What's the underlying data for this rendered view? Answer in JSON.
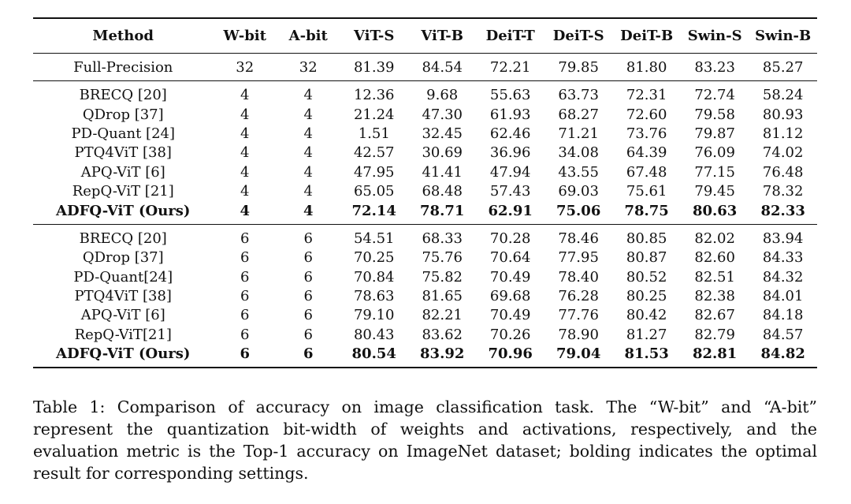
{
  "table": {
    "columns": [
      "Method",
      "W-bit",
      "A-bit",
      "ViT-S",
      "ViT-B",
      "DeiT-T",
      "DeiT-S",
      "DeiT-B",
      "Swin-S",
      "Swin-B"
    ],
    "full_precision": {
      "method": "Full-Precision",
      "cells": [
        "32",
        "32",
        "81.39",
        "84.54",
        "72.21",
        "79.85",
        "81.80",
        "83.23",
        "85.27"
      ]
    },
    "groups": [
      {
        "rows": [
          {
            "method": "BRECQ [20]",
            "cells": [
              "4",
              "4",
              "12.36",
              "9.68",
              "55.63",
              "63.73",
              "72.31",
              "72.74",
              "58.24"
            ]
          },
          {
            "method": "QDrop [37]",
            "cells": [
              "4",
              "4",
              "21.24",
              "47.30",
              "61.93",
              "68.27",
              "72.60",
              "79.58",
              "80.93"
            ]
          },
          {
            "method": "PD-Quant [24]",
            "cells": [
              "4",
              "4",
              "1.51",
              "32.45",
              "62.46",
              "71.21",
              "73.76",
              "79.87",
              "81.12"
            ]
          },
          {
            "method": "PTQ4ViT [38]",
            "cells": [
              "4",
              "4",
              "42.57",
              "30.69",
              "36.96",
              "34.08",
              "64.39",
              "76.09",
              "74.02"
            ]
          },
          {
            "method": "APQ-ViT [6]",
            "cells": [
              "4",
              "4",
              "47.95",
              "41.41",
              "47.94",
              "43.55",
              "67.48",
              "77.15",
              "76.48"
            ]
          },
          {
            "method": "RepQ-ViT [21]",
            "cells": [
              "4",
              "4",
              "65.05",
              "68.48",
              "57.43",
              "69.03",
              "75.61",
              "79.45",
              "78.32"
            ]
          },
          {
            "method": "ADFQ-ViT (Ours)",
            "cells": [
              "4",
              "4",
              "72.14",
              "78.71",
              "62.91",
              "75.06",
              "78.75",
              "80.63",
              "82.33"
            ],
            "bold": true
          }
        ]
      },
      {
        "rows": [
          {
            "method": "BRECQ [20]",
            "cells": [
              "6",
              "6",
              "54.51",
              "68.33",
              "70.28",
              "78.46",
              "80.85",
              "82.02",
              "83.94"
            ]
          },
          {
            "method": "QDrop [37]",
            "cells": [
              "6",
              "6",
              "70.25",
              "75.76",
              "70.64",
              "77.95",
              "80.87",
              "82.60",
              "84.33"
            ]
          },
          {
            "method": "PD-Quant[24]",
            "cells": [
              "6",
              "6",
              "70.84",
              "75.82",
              "70.49",
              "78.40",
              "80.52",
              "82.51",
              "84.32"
            ]
          },
          {
            "method": "PTQ4ViT [38]",
            "cells": [
              "6",
              "6",
              "78.63",
              "81.65",
              "69.68",
              "76.28",
              "80.25",
              "82.38",
              "84.01"
            ]
          },
          {
            "method": "APQ-ViT [6]",
            "cells": [
              "6",
              "6",
              "79.10",
              "82.21",
              "70.49",
              "77.76",
              "80.42",
              "82.67",
              "84.18"
            ]
          },
          {
            "method": "RepQ-ViT[21]",
            "cells": [
              "6",
              "6",
              "80.43",
              "83.62",
              "70.26",
              "78.90",
              "81.27",
              "82.79",
              "84.57"
            ]
          },
          {
            "method": "ADFQ-ViT (Ours)",
            "cells": [
              "6",
              "6",
              "80.54",
              "83.92",
              "70.96",
              "79.04",
              "81.53",
              "82.81",
              "84.82"
            ],
            "bold": true
          }
        ]
      }
    ]
  },
  "caption": "Table 1: Comparison of accuracy on image classification task. The “W-bit” and “A-bit” represent the quantization bit-width of weights and activations, respectively, and the evaluation metric is the Top-1 accuracy on ImageNet dataset; bolding indicates the optimal result for corresponding settings."
}
